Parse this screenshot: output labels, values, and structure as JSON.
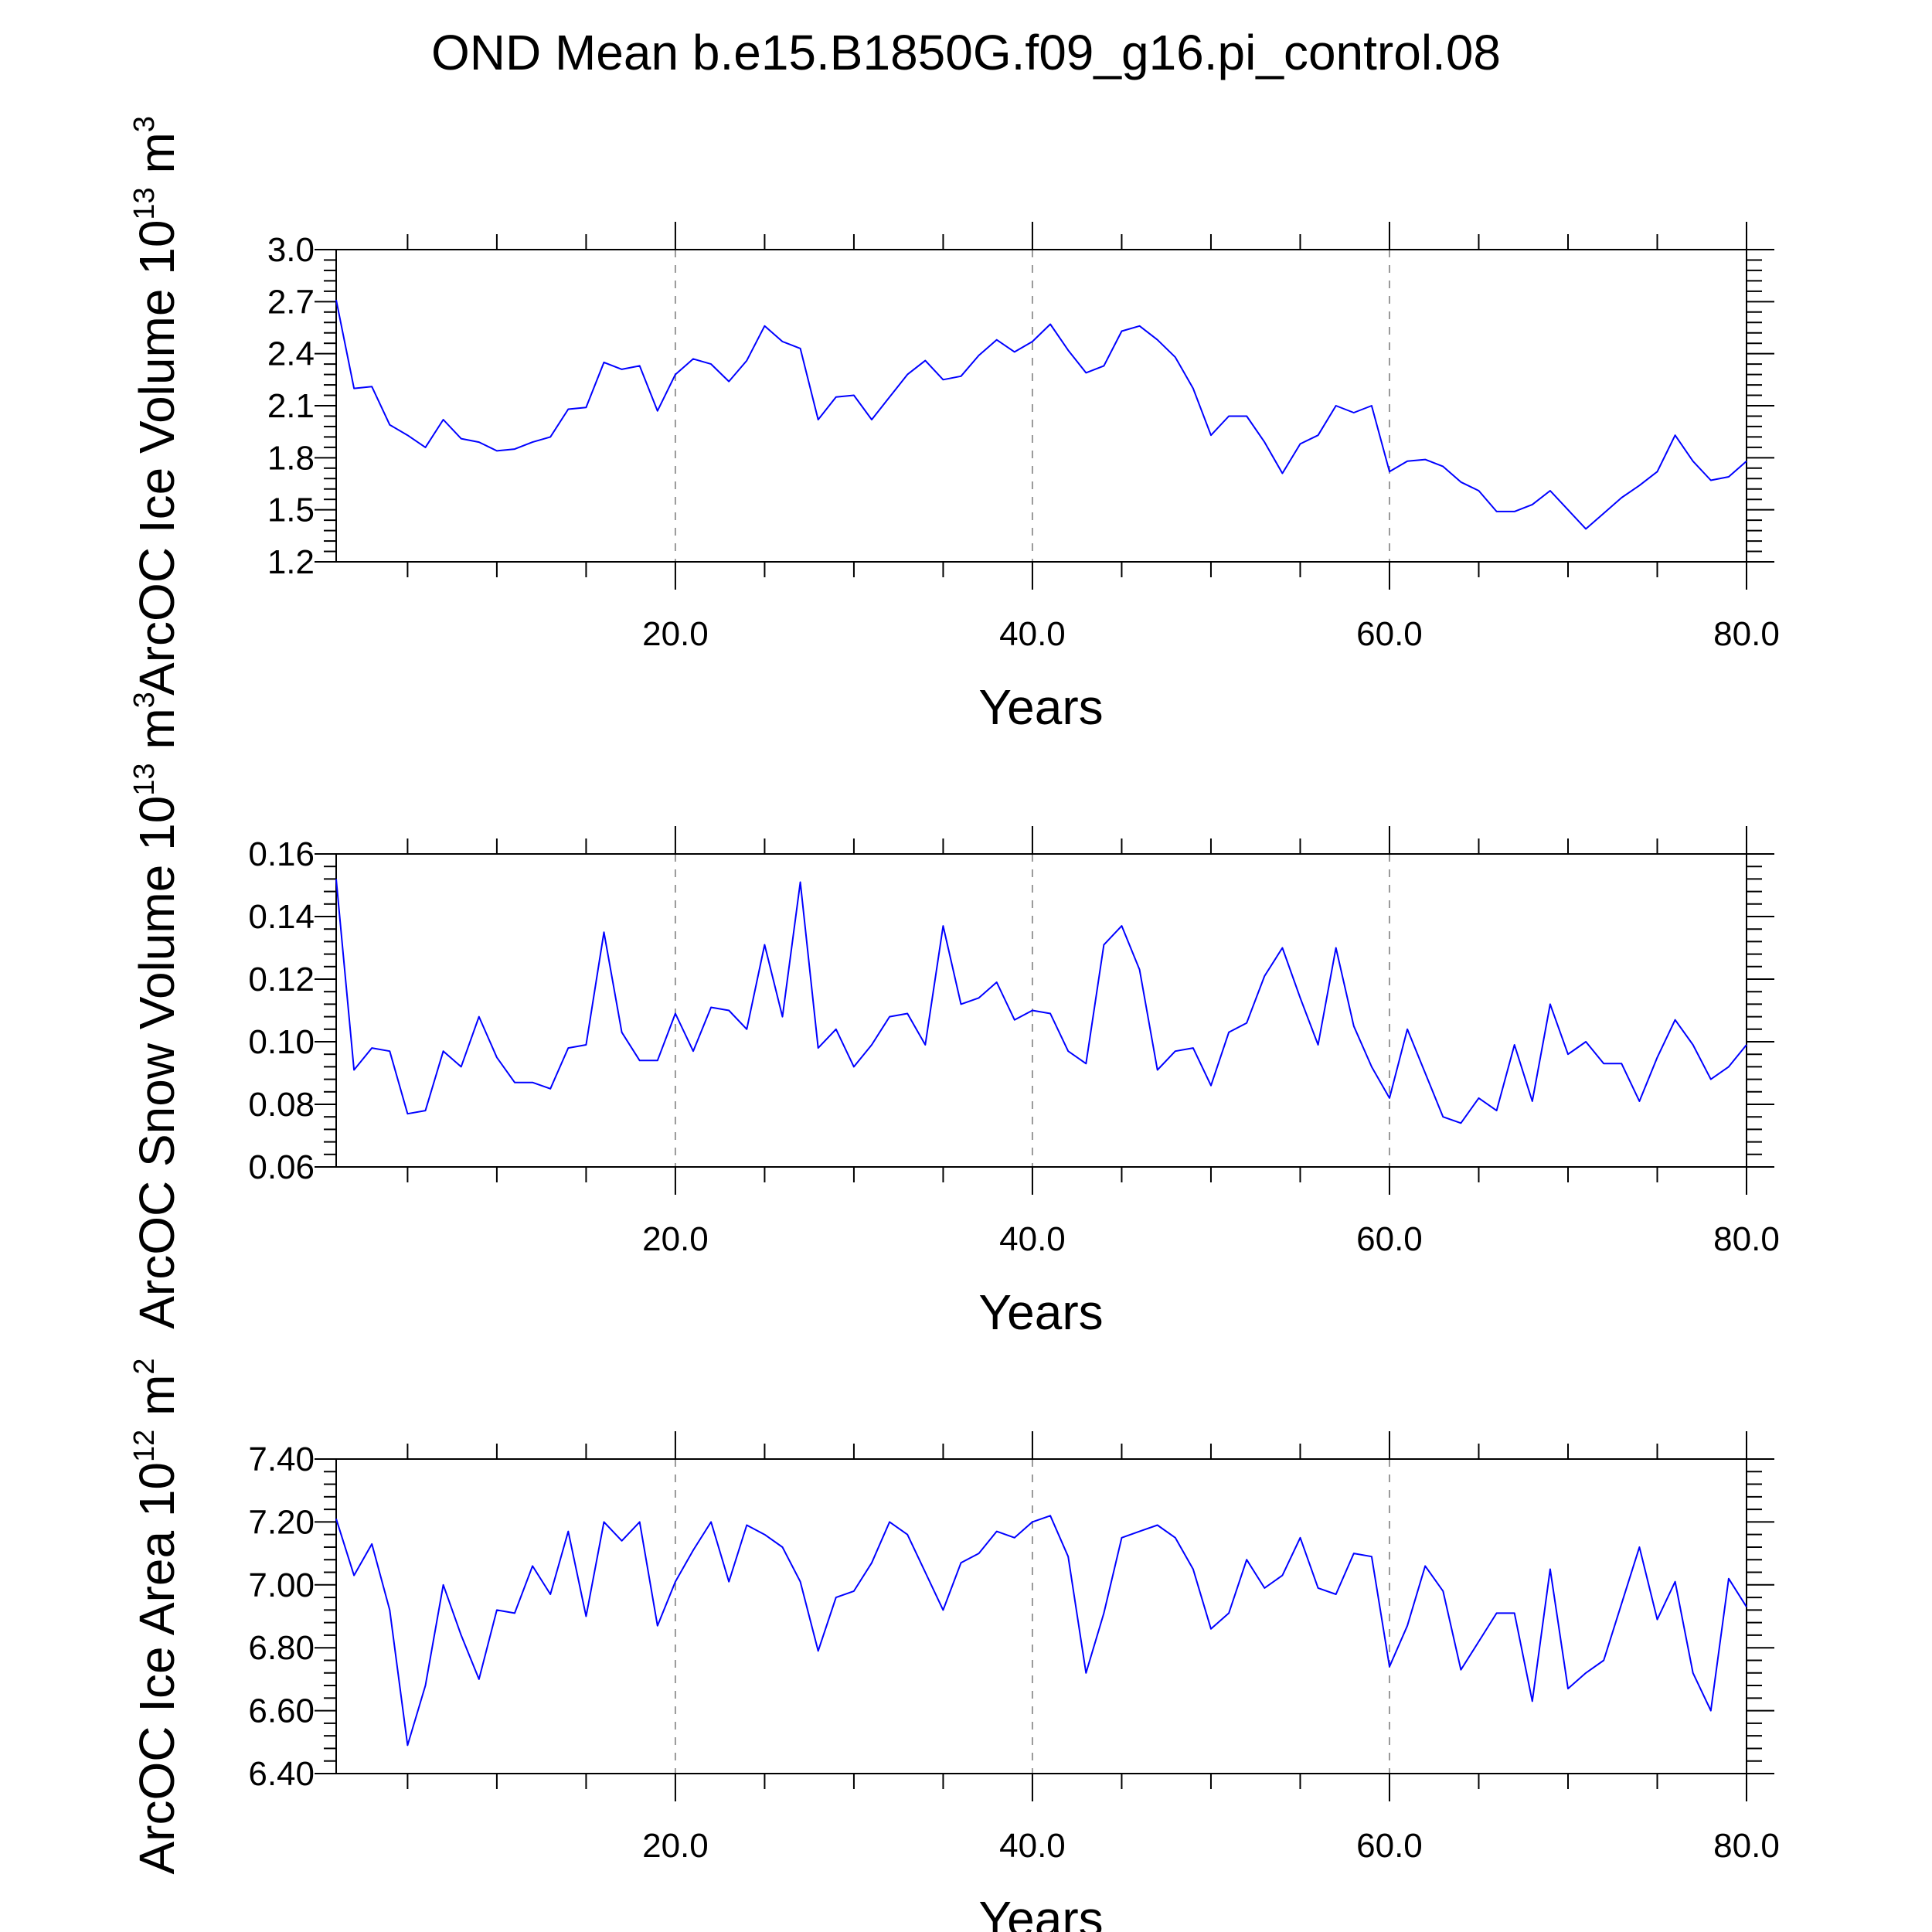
{
  "title": "OND Mean b.e15.B1850G.f09_g16.pi_control.08",
  "colors": {
    "series": "#0000ff",
    "axis": "#000000",
    "grid": "#999999"
  },
  "chart_data": [
    {
      "type": "line",
      "ylabel_main": "ArcOC Ice Volume 10",
      "ylabel_exp": "13",
      "ylabel_unit": "m",
      "ylabel_unit_exp": "3",
      "xlabel": "Years",
      "xlim": [
        1,
        80
      ],
      "ylim": [
        1.2,
        3.0
      ],
      "yticks": [
        "1.2",
        "1.5",
        "1.8",
        "2.1",
        "2.4",
        "2.7",
        "3.0"
      ],
      "xticks": [
        "20.0",
        "40.0",
        "60.0",
        "80.0"
      ],
      "grid": "vertical dashed at 20, 40, 60",
      "x_start": 1,
      "values": [
        2.71,
        2.2,
        2.21,
        1.99,
        1.93,
        1.86,
        2.02,
        1.91,
        1.89,
        1.84,
        1.85,
        1.89,
        1.92,
        2.08,
        2.09,
        2.35,
        2.31,
        2.33,
        2.07,
        2.28,
        2.37,
        2.34,
        2.24,
        2.36,
        2.56,
        2.47,
        2.43,
        2.02,
        2.15,
        2.16,
        2.02,
        2.15,
        2.28,
        2.36,
        2.25,
        2.27,
        2.39,
        2.48,
        2.41,
        2.47,
        2.57,
        2.42,
        2.29,
        2.33,
        2.53,
        2.56,
        2.48,
        2.38,
        2.2,
        1.93,
        2.04,
        2.04,
        1.89,
        1.71,
        1.88,
        1.93,
        2.1,
        2.06,
        2.1,
        1.72,
        1.78,
        1.79,
        1.75,
        1.66,
        1.61,
        1.49,
        1.49,
        1.53,
        1.61,
        1.5,
        1.39,
        1.48,
        1.57,
        1.64,
        1.72,
        1.93,
        1.78,
        1.67,
        1.69,
        1.78
      ]
    },
    {
      "type": "line",
      "ylabel_main": "ArcOC Snow Volume 10",
      "ylabel_exp": "13",
      "ylabel_unit": "m",
      "ylabel_unit_exp": "3",
      "xlabel": "Years",
      "xlim": [
        1,
        80
      ],
      "ylim": [
        0.06,
        0.16
      ],
      "yticks": [
        "0.06",
        "0.08",
        "0.10",
        "0.12",
        "0.14",
        "0.16"
      ],
      "xticks": [
        "20.0",
        "40.0",
        "60.0",
        "80.0"
      ],
      "grid": "vertical dashed at 20, 40, 60",
      "x_start": 1,
      "values": [
        0.152,
        0.091,
        0.098,
        0.097,
        0.077,
        0.078,
        0.097,
        0.092,
        0.108,
        0.095,
        0.087,
        0.087,
        0.085,
        0.098,
        0.099,
        0.135,
        0.103,
        0.094,
        0.094,
        0.109,
        0.097,
        0.111,
        0.11,
        0.104,
        0.131,
        0.108,
        0.151,
        0.098,
        0.104,
        0.092,
        0.099,
        0.108,
        0.109,
        0.099,
        0.137,
        0.112,
        0.114,
        0.119,
        0.107,
        0.11,
        0.109,
        0.097,
        0.093,
        0.131,
        0.137,
        0.123,
        0.091,
        0.097,
        0.098,
        0.086,
        0.103,
        0.106,
        0.121,
        0.13,
        0.114,
        0.099,
        0.13,
        0.105,
        0.092,
        0.082,
        0.104,
        0.09,
        0.076,
        0.074,
        0.082,
        0.078,
        0.099,
        0.081,
        0.112,
        0.096,
        0.1,
        0.093,
        0.093,
        0.081,
        0.095,
        0.107,
        0.099,
        0.088,
        0.092,
        0.099
      ]
    },
    {
      "type": "line",
      "ylabel_main": "ArcOC Ice Area 10",
      "ylabel_exp": "12",
      "ylabel_unit": "m",
      "ylabel_unit_exp": "2",
      "xlabel": "Years",
      "xlim": [
        1,
        80
      ],
      "ylim": [
        6.4,
        7.4
      ],
      "yticks": [
        "6.40",
        "6.60",
        "6.80",
        "7.00",
        "7.20",
        "7.40"
      ],
      "xticks": [
        "20.0",
        "40.0",
        "60.0",
        "80.0"
      ],
      "grid": "vertical dashed at 20, 40, 60",
      "x_start": 1,
      "values": [
        7.21,
        7.03,
        7.13,
        6.92,
        6.49,
        6.68,
        7.0,
        6.84,
        6.7,
        6.92,
        6.91,
        7.06,
        6.97,
        7.17,
        6.9,
        7.2,
        7.14,
        7.2,
        6.87,
        7.01,
        7.11,
        7.2,
        7.01,
        7.19,
        7.16,
        7.12,
        7.01,
        6.79,
        6.96,
        6.98,
        7.07,
        7.2,
        7.16,
        7.04,
        6.92,
        7.07,
        7.1,
        7.17,
        7.15,
        7.2,
        7.22,
        7.09,
        6.72,
        6.91,
        7.15,
        7.17,
        7.19,
        7.15,
        7.05,
        6.86,
        6.91,
        7.08,
        6.99,
        7.03,
        7.15,
        6.99,
        6.97,
        7.1,
        7.09,
        6.74,
        6.87,
        7.06,
        6.98,
        6.73,
        6.82,
        6.91,
        6.91,
        6.63,
        7.05,
        6.67,
        6.72,
        6.76,
        6.94,
        7.12,
        6.89,
        7.01,
        6.72,
        6.6,
        7.02,
        6.93
      ]
    }
  ]
}
